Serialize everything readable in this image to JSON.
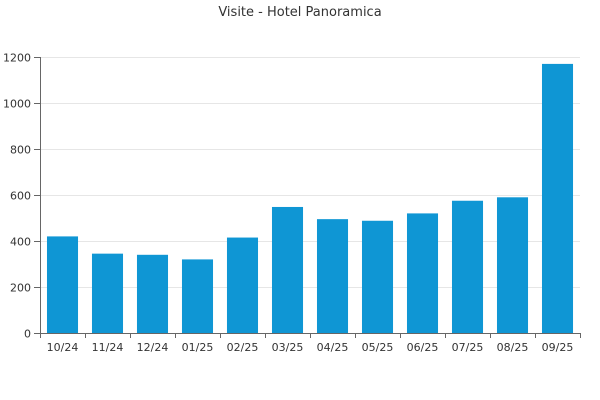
{
  "chart_data": {
    "type": "bar",
    "title": "Visite - Hotel Panoramica",
    "xlabel": "",
    "ylabel": "",
    "categories": [
      "10/24",
      "11/24",
      "12/24",
      "01/25",
      "02/25",
      "03/25",
      "04/25",
      "05/25",
      "06/25",
      "07/25",
      "08/25",
      "09/25"
    ],
    "values": [
      420,
      345,
      340,
      320,
      415,
      548,
      495,
      488,
      520,
      575,
      590,
      1170
    ],
    "ylim": [
      0,
      1200
    ],
    "yticks": [
      0,
      200,
      400,
      600,
      800,
      1000,
      1200
    ],
    "grid": true,
    "legend": "none",
    "colors": {
      "bar": "#0f96d4",
      "grid": "#e6e6e6",
      "axis": "#666666",
      "text": "#333333"
    }
  }
}
